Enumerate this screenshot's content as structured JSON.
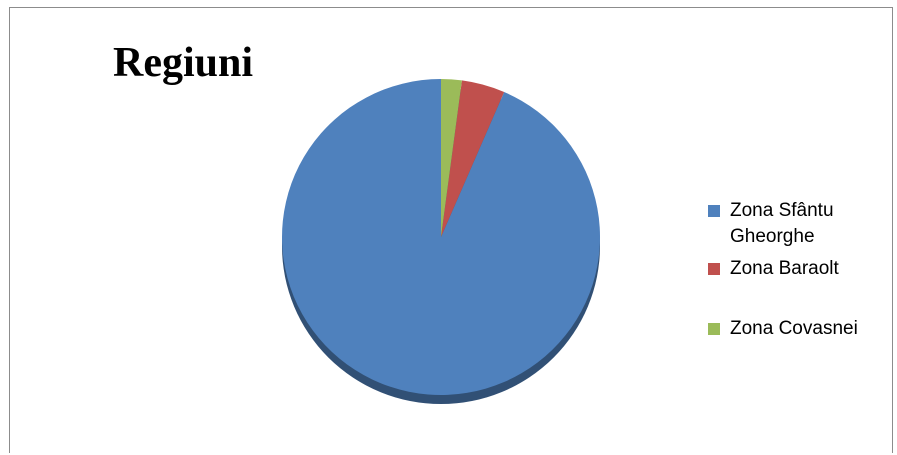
{
  "chart_data": {
    "type": "pie",
    "title": "Regiuni",
    "categories": [
      "Zona Sfântu Gheorghe",
      "Zona Baraolt",
      "Zona Covasnei"
    ],
    "values": [
      93.5,
      4.4,
      2.1
    ],
    "colors": [
      "#4f81bd",
      "#c0504d",
      "#9bbb59"
    ],
    "legend_position": "right",
    "style": "3d"
  }
}
